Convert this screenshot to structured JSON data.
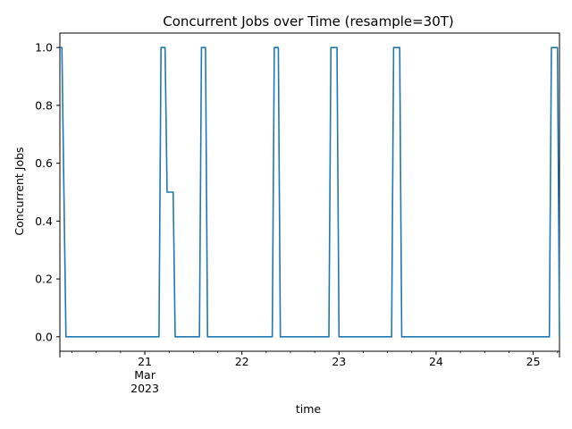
{
  "chart_data": {
    "type": "line",
    "title": "Concurrent Jobs over Time (resample=30T)",
    "xlabel": "time",
    "ylabel": "Concurrent Jobs",
    "xlim": [
      "2023-03-20 03:00",
      "2023-03-25 06:30"
    ],
    "ylim": [
      -0.05,
      1.05
    ],
    "yticks": [
      "0.0",
      "0.2",
      "0.4",
      "0.6",
      "0.8",
      "1.0"
    ],
    "xticks": [
      {
        "date": "2023-03-21",
        "label": "21",
        "sub": [
          "Mar",
          "2023"
        ]
      },
      {
        "date": "2023-03-22",
        "label": "22"
      },
      {
        "date": "2023-03-23",
        "label": "23"
      },
      {
        "date": "2023-03-24",
        "label": "24"
      },
      {
        "date": "2023-03-25",
        "label": "25"
      }
    ],
    "grid": false,
    "color": "#1f77b4",
    "series": [
      {
        "x": [
          "2023-03-20 03:00",
          "2023-03-20 03:30",
          "2023-03-20 04:30",
          "2023-03-21 03:30",
          "2023-03-21 04:00",
          "2023-03-21 05:00",
          "2023-03-21 05:30",
          "2023-03-21 07:00",
          "2023-03-21 07:30",
          "2023-03-21 13:30",
          "2023-03-21 14:00",
          "2023-03-21 15:00",
          "2023-03-21 15:30",
          "2023-03-22 07:30",
          "2023-03-22 08:00",
          "2023-03-22 09:00",
          "2023-03-22 09:30",
          "2023-03-22 21:30",
          "2023-03-22 22:00",
          "2023-03-22 23:30",
          "2023-03-23 00:00",
          "2023-03-23 13:00",
          "2023-03-23 13:30",
          "2023-03-23 15:00",
          "2023-03-23 15:30",
          "2023-03-25 04:00",
          "2023-03-25 04:30",
          "2023-03-25 06:00",
          "2023-03-25 06:30"
        ],
        "values": [
          1.0,
          1.0,
          0.0,
          0.0,
          1.0,
          1.0,
          0.5,
          0.5,
          0.0,
          0.0,
          1.0,
          1.0,
          0.0,
          0.0,
          1.0,
          1.0,
          0.0,
          0.0,
          1.0,
          1.0,
          0.0,
          0.0,
          1.0,
          1.0,
          0.0,
          0.0,
          1.0,
          1.0,
          0.0
        ]
      }
    ]
  }
}
